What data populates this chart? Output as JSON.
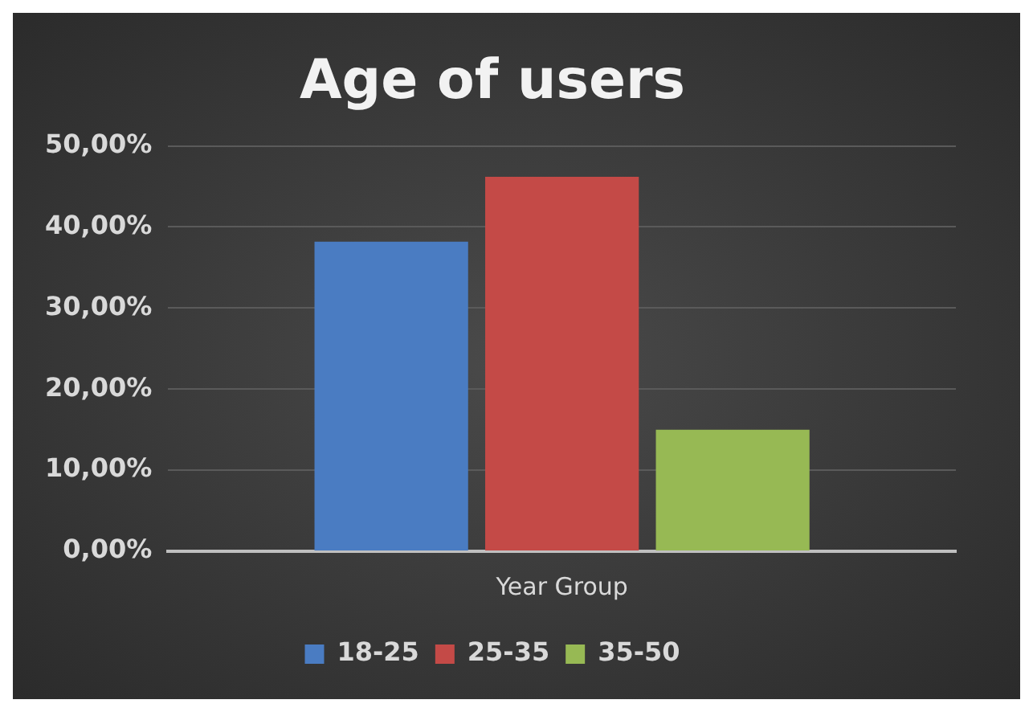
{
  "chart_data": {
    "type": "bar",
    "title": "Age of users",
    "categories": [
      "Year Group"
    ],
    "series": [
      {
        "name": "18-25",
        "color": "#4a7cc2",
        "values": [
          38.2
        ]
      },
      {
        "name": "25-35",
        "color": "#c44a47",
        "values": [
          46.2
        ]
      },
      {
        "name": "35-50",
        "color": "#97b954",
        "values": [
          15.0
        ]
      }
    ],
    "ylim": [
      0,
      50
    ],
    "yticks": [
      {
        "value": 0,
        "label": "0,00%"
      },
      {
        "value": 10,
        "label": "10,00%"
      },
      {
        "value": 20,
        "label": "20,00%"
      },
      {
        "value": 30,
        "label": "30,00%"
      },
      {
        "value": 40,
        "label": "40,00%"
      },
      {
        "value": 50,
        "label": "50,00%"
      }
    ],
    "grid": "y",
    "legend": "bottom"
  }
}
